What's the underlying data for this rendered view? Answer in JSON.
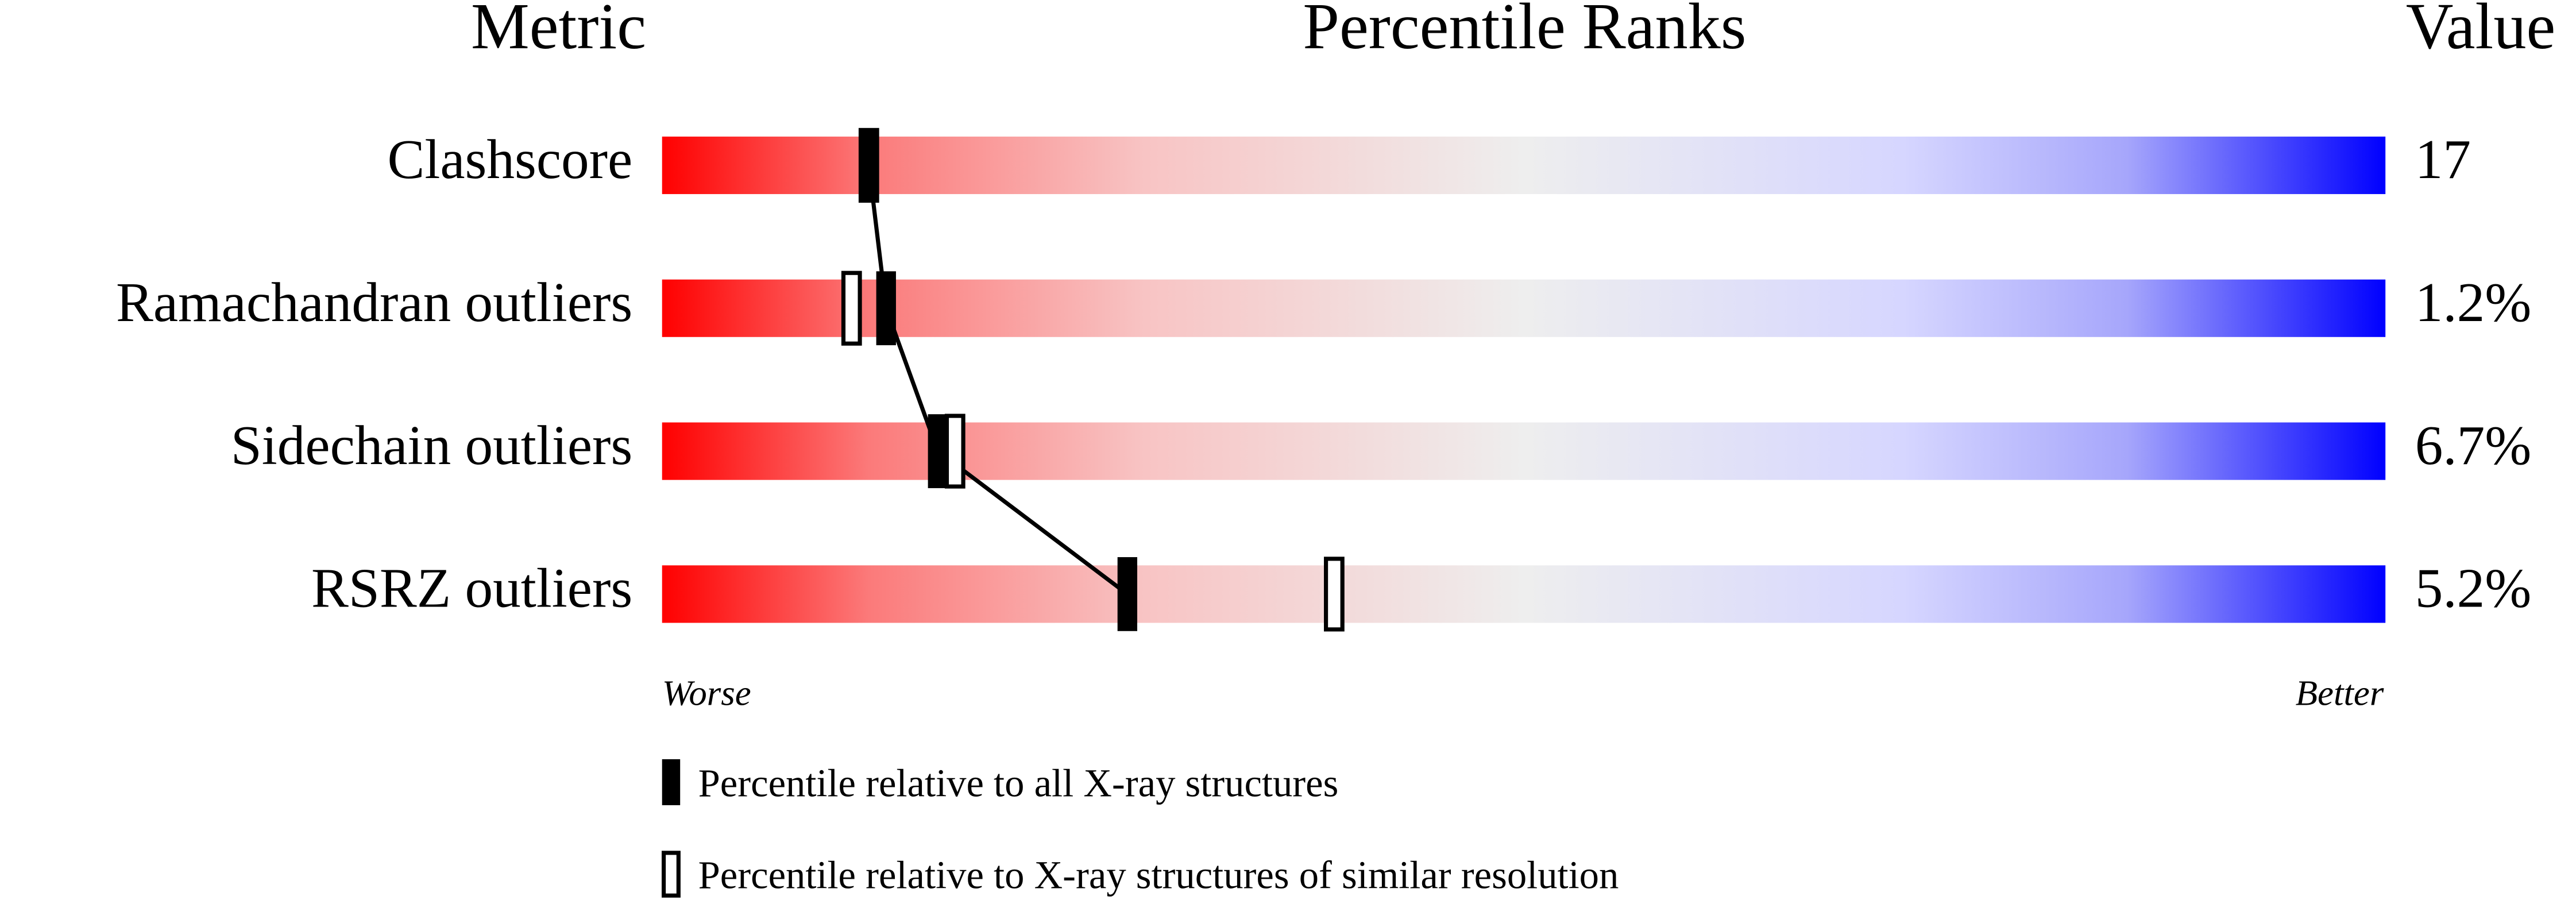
{
  "header": {
    "metric": "Metric",
    "percentile_ranks": "Percentile Ranks",
    "value": "Value"
  },
  "percentile_range": [
    0,
    100
  ],
  "rows": [
    {
      "metric": "Clashscore",
      "value": "17",
      "percentile_all": 12,
      "percentile_similar": 12
    },
    {
      "metric": "Ramachandran outliers",
      "value": "1.2%",
      "percentile_all": 13,
      "percentile_similar": 11
    },
    {
      "metric": "Sidechain outliers",
      "value": "6.7%",
      "percentile_all": 16,
      "percentile_similar": 17
    },
    {
      "metric": "RSRZ outliers",
      "value": "5.2%",
      "percentile_all": 27,
      "percentile_similar": 39
    }
  ],
  "axis": {
    "left": "Worse",
    "right": "Better"
  },
  "legend": {
    "all": "Percentile relative to all X-ray structures",
    "similar": "Percentile relative to X-ray structures of similar resolution"
  }
}
